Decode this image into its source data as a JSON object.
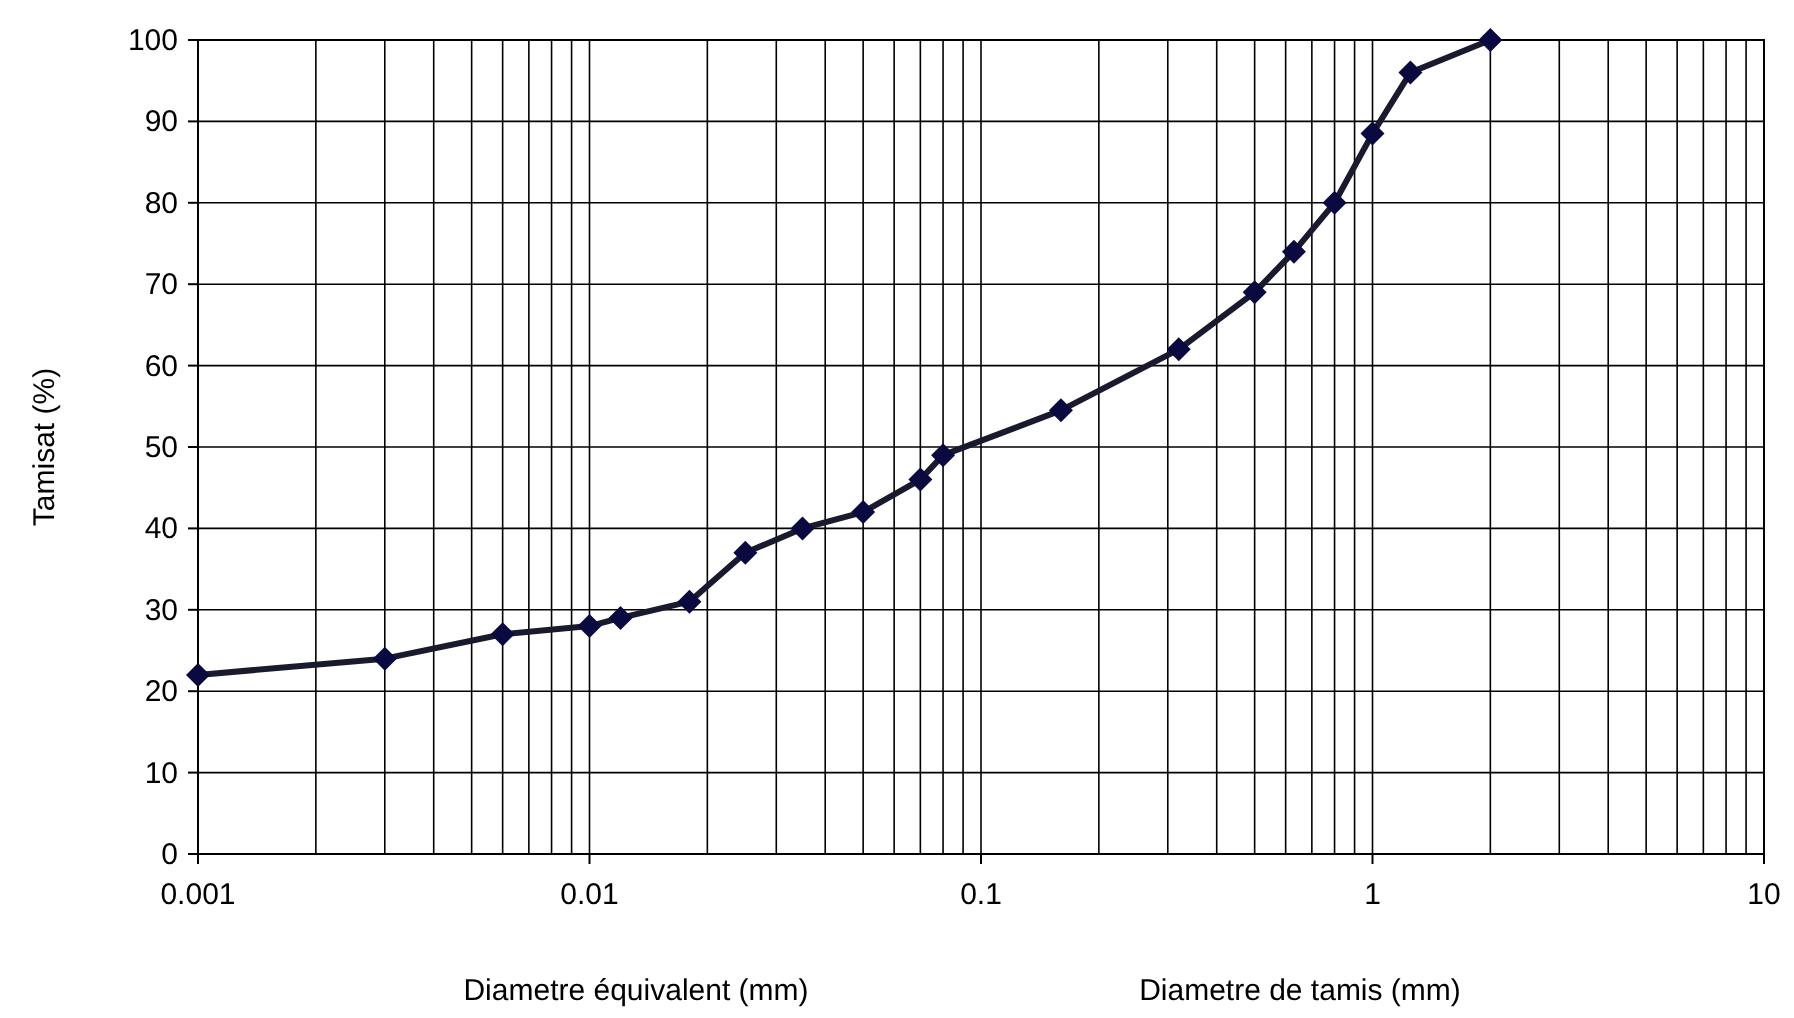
{
  "chart_data": {
    "type": "line",
    "xlabel": "Diametre équivalent (mm)",
    "ylabel": "Tamisat (%)",
    "annotations": [
      "Diametre de tamis (mm)"
    ],
    "log": "x",
    "grid": true,
    "marker": "diamond",
    "line_style": "solid",
    "x": [
      0.001,
      0.003,
      0.006,
      0.01,
      0.012,
      0.018,
      0.025,
      0.035,
      0.05,
      0.07,
      0.08,
      0.16,
      0.32,
      0.5,
      0.63,
      0.8,
      1,
      1.25,
      2
    ],
    "series": [
      {
        "color": "#1a1a2e",
        "values": [
          22,
          24,
          27,
          28,
          29,
          31,
          37,
          40,
          42,
          46,
          49,
          54.5,
          62,
          69,
          74,
          80,
          88.5,
          96,
          100
        ]
      }
    ],
    "xlim": [
      0.001,
      10
    ],
    "xticks": [
      0.001,
      0.01,
      0.1,
      1,
      10
    ],
    "ylim": [
      0,
      100
    ],
    "yticks": [
      0,
      10,
      20,
      30,
      40,
      50,
      60,
      70,
      80,
      90,
      100
    ]
  }
}
